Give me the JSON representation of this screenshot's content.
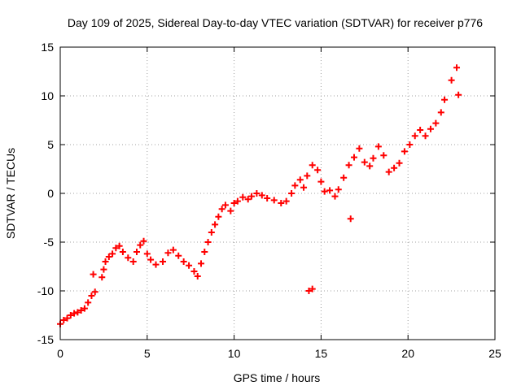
{
  "chart_data": {
    "type": "scatter",
    "title": "Day 109 of 2025, Sidereal Day-to-day VTEC variation (SDTVAR) for receiver p776",
    "xlabel": "GPS time / hours",
    "ylabel": "SDTVAR / TECUs",
    "xlim": [
      0,
      25
    ],
    "ylim": [
      -15,
      15
    ],
    "xticks": [
      "0",
      "5",
      "10",
      "15",
      "20",
      "25"
    ],
    "yticks": [
      "-15",
      "-10",
      "-5",
      "0",
      "5",
      "10",
      "15"
    ],
    "grid": true,
    "legend": "none",
    "marker": "plus",
    "color": "#ff0000",
    "series": [
      {
        "values": [
          [
            0.0,
            -13.4
          ],
          [
            0.2,
            -13.0
          ],
          [
            0.4,
            -12.8
          ],
          [
            0.6,
            -12.5
          ],
          [
            0.8,
            -12.3
          ],
          [
            1.0,
            -12.2
          ],
          [
            1.2,
            -12.0
          ],
          [
            1.4,
            -11.8
          ],
          [
            1.6,
            -11.2
          ],
          [
            1.8,
            -10.5
          ],
          [
            2.0,
            -10.1
          ],
          [
            1.9,
            -8.3
          ],
          [
            2.4,
            -8.6
          ],
          [
            2.5,
            -7.8
          ],
          [
            2.6,
            -7.0
          ],
          [
            2.8,
            -6.5
          ],
          [
            3.0,
            -6.2
          ],
          [
            3.2,
            -5.6
          ],
          [
            3.4,
            -5.4
          ],
          [
            3.6,
            -6.0
          ],
          [
            3.9,
            -6.6
          ],
          [
            4.2,
            -7.0
          ],
          [
            4.4,
            -6.0
          ],
          [
            4.6,
            -5.3
          ],
          [
            4.8,
            -4.9
          ],
          [
            5.0,
            -6.2
          ],
          [
            5.2,
            -6.8
          ],
          [
            5.5,
            -7.3
          ],
          [
            5.9,
            -7.0
          ],
          [
            6.2,
            -6.1
          ],
          [
            6.5,
            -5.8
          ],
          [
            6.8,
            -6.4
          ],
          [
            7.1,
            -7.0
          ],
          [
            7.4,
            -7.4
          ],
          [
            7.7,
            -8.0
          ],
          [
            7.9,
            -8.5
          ],
          [
            8.1,
            -7.2
          ],
          [
            8.3,
            -6.0
          ],
          [
            8.5,
            -5.0
          ],
          [
            8.7,
            -4.0
          ],
          [
            8.9,
            -3.2
          ],
          [
            9.1,
            -2.4
          ],
          [
            9.3,
            -1.6
          ],
          [
            9.5,
            -1.2
          ],
          [
            9.8,
            -1.8
          ],
          [
            10.0,
            -1.0
          ],
          [
            10.2,
            -0.8
          ],
          [
            10.5,
            -0.4
          ],
          [
            10.8,
            -0.6
          ],
          [
            11.0,
            -0.3
          ],
          [
            11.3,
            0.0
          ],
          [
            11.6,
            -0.2
          ],
          [
            11.9,
            -0.5
          ],
          [
            12.3,
            -0.7
          ],
          [
            12.7,
            -1.0
          ],
          [
            13.0,
            -0.8
          ],
          [
            13.3,
            0.0
          ],
          [
            13.5,
            0.8
          ],
          [
            13.8,
            1.4
          ],
          [
            14.0,
            0.6
          ],
          [
            14.2,
            1.8
          ],
          [
            14.5,
            2.9
          ],
          [
            14.8,
            2.4
          ],
          [
            15.0,
            1.2
          ],
          [
            15.2,
            0.2
          ],
          [
            15.5,
            0.3
          ],
          [
            15.8,
            -0.3
          ],
          [
            16.0,
            0.4
          ],
          [
            16.3,
            1.6
          ],
          [
            16.6,
            2.9
          ],
          [
            16.9,
            3.7
          ],
          [
            17.2,
            4.6
          ],
          [
            17.5,
            3.2
          ],
          [
            17.8,
            2.8
          ],
          [
            18.0,
            3.6
          ],
          [
            18.3,
            4.8
          ],
          [
            18.6,
            3.9
          ],
          [
            18.9,
            2.2
          ],
          [
            19.2,
            2.6
          ],
          [
            19.5,
            3.1
          ],
          [
            19.8,
            4.3
          ],
          [
            20.1,
            5.0
          ],
          [
            20.4,
            5.9
          ],
          [
            20.7,
            6.5
          ],
          [
            21.0,
            5.9
          ],
          [
            21.3,
            6.6
          ],
          [
            21.6,
            7.2
          ],
          [
            21.9,
            8.3
          ],
          [
            22.1,
            9.6
          ],
          [
            22.5,
            11.6
          ],
          [
            22.8,
            12.9
          ],
          [
            22.9,
            10.1
          ],
          [
            16.7,
            -2.6
          ],
          [
            14.3,
            -10.0
          ],
          [
            14.5,
            -9.8
          ]
        ]
      }
    ]
  }
}
